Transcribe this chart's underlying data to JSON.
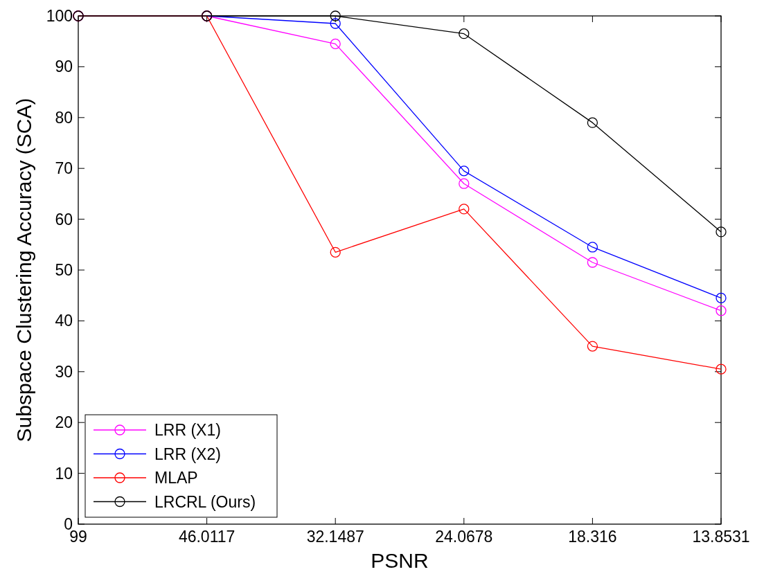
{
  "chart_data": {
    "type": "line",
    "xlabel": "PSNR",
    "ylabel": "Subspace Clustering Accuracy (SCA)",
    "categories": [
      "99",
      "46.0117",
      "32.1487",
      "24.0678",
      "18.316",
      "13.8531"
    ],
    "series": [
      {
        "name": "LRR (X1)",
        "color": "#ff00ff",
        "values": [
          100,
          100,
          94.5,
          67,
          51.5,
          42
        ]
      },
      {
        "name": "LRR (X2)",
        "color": "#0000ff",
        "values": [
          100,
          100,
          98.5,
          69.5,
          54.5,
          44.5
        ]
      },
      {
        "name": "MLAP",
        "color": "#ff0000",
        "values": [
          100,
          100,
          53.5,
          62,
          35,
          30.5
        ]
      },
      {
        "name": "LRCRL (Ours)",
        "color": "#000000",
        "values": [
          100,
          100,
          100,
          96.5,
          79,
          57.5
        ]
      }
    ],
    "ylim": [
      0,
      100
    ],
    "yticks": [
      0,
      10,
      20,
      30,
      40,
      50,
      60,
      70,
      80,
      90,
      100
    ],
    "grid": false,
    "legend": "bottom left",
    "marker": "circle",
    "line_style": "solid"
  }
}
